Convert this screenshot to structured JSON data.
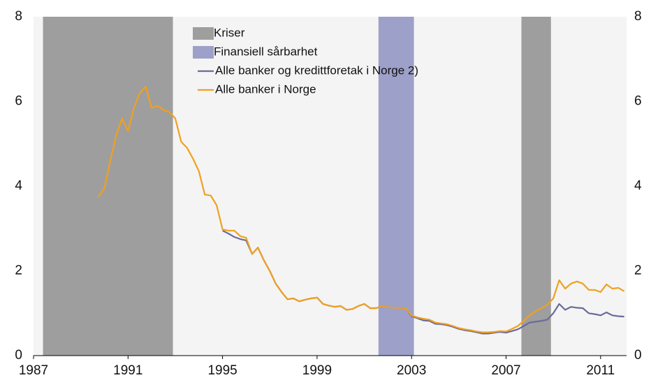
{
  "chart_data": {
    "type": "line",
    "x": [
      1989.75,
      1990,
      1990.25,
      1990.5,
      1990.75,
      1991,
      1991.25,
      1991.5,
      1991.75,
      1992,
      1992.25,
      1992.5,
      1992.75,
      1993,
      1993.25,
      1993.5,
      1993.75,
      1994,
      1994.25,
      1994.5,
      1994.75,
      1995,
      1995.25,
      1995.5,
      1995.75,
      1996,
      1996.25,
      1996.5,
      1996.75,
      1997,
      1997.25,
      1997.5,
      1997.75,
      1998,
      1998.25,
      1998.5,
      1998.75,
      1999,
      1999.25,
      1999.5,
      1999.75,
      2000,
      2000.25,
      2000.5,
      2000.75,
      2001,
      2001.25,
      2001.5,
      2001.75,
      2002,
      2002.25,
      2002.5,
      2002.75,
      2003,
      2003.25,
      2003.5,
      2003.75,
      2004,
      2004.25,
      2004.5,
      2004.75,
      2005,
      2005.25,
      2005.5,
      2005.75,
      2006,
      2006.25,
      2006.5,
      2006.75,
      2007,
      2007.25,
      2007.5,
      2007.75,
      2008,
      2008.25,
      2008.5,
      2008.75,
      2009,
      2009.25,
      2009.5,
      2009.75,
      2010,
      2010.25,
      2010.5,
      2010.75,
      2011,
      2011.25,
      2011.5,
      2011.75,
      2012
    ],
    "series": [
      {
        "name": "Alle banker og kredittforetak i Norge 2)",
        "color": "#6a6a9a",
        "values": [
          null,
          null,
          null,
          null,
          null,
          null,
          null,
          null,
          null,
          null,
          null,
          null,
          null,
          null,
          null,
          null,
          null,
          null,
          null,
          null,
          null,
          2.95,
          2.88,
          2.8,
          2.75,
          2.72,
          2.4,
          2.55,
          2.25,
          2.0,
          1.7,
          1.5,
          1.33,
          1.35,
          1.28,
          1.32,
          1.35,
          1.37,
          1.22,
          1.18,
          1.15,
          1.17,
          1.08,
          1.1,
          1.17,
          1.22,
          1.12,
          1.12,
          1.17,
          1.14,
          1.13,
          1.13,
          1.12,
          0.93,
          0.88,
          0.83,
          0.82,
          0.75,
          0.74,
          0.72,
          0.68,
          0.63,
          0.6,
          0.58,
          0.55,
          0.52,
          0.52,
          0.54,
          0.56,
          0.54,
          0.58,
          0.62,
          0.7,
          0.78,
          0.8,
          0.82,
          0.85,
          1.0,
          1.22,
          1.08,
          1.15,
          1.13,
          1.12,
          1.0,
          0.98,
          0.95,
          1.02,
          0.95,
          0.93,
          0.92
        ]
      },
      {
        "name": "Alle banker i Norge",
        "color": "#f0a020",
        "values": [
          3.75,
          3.95,
          4.6,
          5.2,
          5.6,
          5.3,
          5.85,
          6.2,
          6.35,
          5.85,
          5.9,
          5.8,
          5.75,
          5.6,
          5.05,
          4.9,
          4.65,
          4.35,
          3.8,
          3.78,
          3.55,
          2.98,
          2.95,
          2.95,
          2.82,
          2.78,
          2.4,
          2.55,
          2.25,
          2.0,
          1.7,
          1.5,
          1.33,
          1.35,
          1.28,
          1.32,
          1.35,
          1.37,
          1.22,
          1.18,
          1.15,
          1.17,
          1.08,
          1.1,
          1.17,
          1.22,
          1.12,
          1.12,
          1.17,
          1.14,
          1.13,
          1.13,
          1.12,
          0.95,
          0.9,
          0.87,
          0.85,
          0.78,
          0.76,
          0.74,
          0.7,
          0.65,
          0.62,
          0.6,
          0.57,
          0.55,
          0.55,
          0.56,
          0.58,
          0.57,
          0.63,
          0.7,
          0.82,
          0.95,
          1.05,
          1.12,
          1.2,
          1.35,
          1.78,
          1.58,
          1.7,
          1.75,
          1.7,
          1.55,
          1.55,
          1.5,
          1.68,
          1.58,
          1.6,
          1.52
        ]
      }
    ],
    "shades": [
      {
        "name": "Kriser",
        "color": "#9e9e9e",
        "ranges": [
          [
            1987.4,
            1992.9
          ],
          [
            2007.65,
            2008.9
          ]
        ]
      },
      {
        "name": "Finansiell sårbarhet",
        "color": "#9da0c8",
        "ranges": [
          [
            2001.6,
            2003.1
          ]
        ]
      }
    ],
    "xlim": [
      1987,
      2012.1
    ],
    "xticks": [
      1987,
      1991,
      1995,
      1999,
      2003,
      2007,
      2011
    ],
    "ylim": [
      0,
      8
    ],
    "yticks": [
      0,
      2,
      4,
      6,
      8
    ],
    "y2lim": [
      0,
      8
    ],
    "y2ticks": [
      0,
      2,
      4,
      6,
      8
    ]
  }
}
